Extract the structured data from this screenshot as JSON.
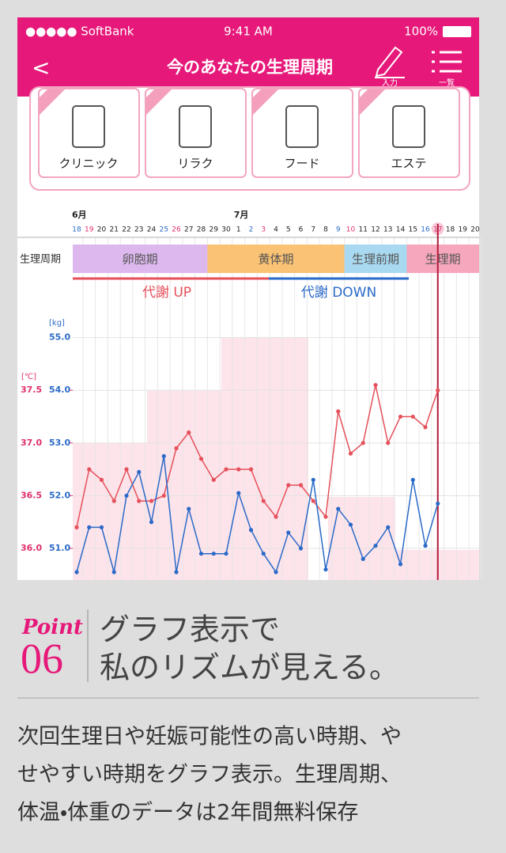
{
  "status_bar": {
    "carrier": "●●●●● SoftBank",
    "time": "9:41 AM",
    "battery": "100%"
  },
  "nav": {
    "back": "<",
    "title": "今のあなたの生理周期",
    "input": "入力",
    "list": "一覧"
  },
  "cards": [
    "クリニック",
    "リラク",
    "フード",
    "エステ"
  ],
  "chart_data": {
    "type": "line",
    "months": [
      "6月",
      "7月"
    ],
    "categories": [
      "18",
      "19",
      "20",
      "21",
      "22",
      "23",
      "24",
      "25",
      "26",
      "27",
      "28",
      "29",
      "30",
      "1",
      "2",
      "3",
      "4",
      "5",
      "6",
      "7",
      "8",
      "9",
      "10",
      "11",
      "12",
      "13",
      "14",
      "15",
      "16",
      "17",
      "18",
      "19",
      "20"
    ],
    "category_colors": [
      "#2a6ac8",
      "#e0306a",
      "#222",
      "#222",
      "#222",
      "#222",
      "#222",
      "#2a6ac8",
      "#e0306a",
      "#222",
      "#222",
      "#222",
      "#222",
      "#222",
      "#2a6ac8",
      "#e0306a",
      "#222",
      "#222",
      "#222",
      "#222",
      "#222",
      "#2a6ac8",
      "#e0306a",
      "#222",
      "#222",
      "#222",
      "#222",
      "#222",
      "#2a6ac8",
      "#e0306a",
      "#222",
      "#222",
      "#222"
    ],
    "phase_label": "生理周期",
    "phases": [
      {
        "name": "卵胞期",
        "color": "#dcb8ee"
      },
      {
        "name": "黄体期",
        "color": "#f9c274"
      },
      {
        "name": "生理前期",
        "color": "#a9d9f1"
      },
      {
        "name": "生理期",
        "color": "#f6a7bd"
      }
    ],
    "metabolism": [
      {
        "name": "代謝 UP",
        "color": "#e5505a"
      },
      {
        "name": "代謝 DOWN",
        "color": "#2a6ac8"
      }
    ],
    "y_label": "[kg]",
    "y2_label": "[℃]",
    "ylim": [
      50.4,
      55.4
    ],
    "yticks": [
      {
        "value": 51,
        "label": "51.0"
      },
      {
        "value": 52,
        "label": "52.0"
      },
      {
        "value": 53,
        "label": "53.0"
      },
      {
        "value": 54,
        "label": "54.0"
      },
      {
        "value": 55,
        "label": "55.0"
      }
    ],
    "y2lim": [
      35.7,
      38.2
    ],
    "y2ticks": [
      {
        "value": 36,
        "label": "36.0"
      },
      {
        "value": 36.5,
        "label": "36.5"
      },
      {
        "value": 37,
        "label": "37.0"
      },
      {
        "value": 37.5,
        "label": "37.5"
      }
    ],
    "grid": true,
    "series": [
      {
        "color": "#e5505a",
        "axis": "y2",
        "values": [
          36.2,
          36.75,
          36.65,
          36.45,
          36.75,
          36.45,
          36.45,
          36.5,
          36.95,
          37.1,
          36.85,
          36.65,
          36.75,
          36.75,
          36.75,
          36.45,
          36.3,
          36.6,
          36.6,
          36.45,
          36.3,
          37.3,
          36.9,
          37.0,
          37.55,
          37.0,
          37.25,
          37.25,
          37.15,
          37.5,
          null,
          null,
          null
        ]
      },
      {
        "color": "#2a6ac8",
        "values": [
          50.55,
          51.4,
          51.4,
          50.55,
          52.0,
          52.45,
          51.5,
          52.75,
          50.55,
          51.75,
          50.9,
          50.9,
          50.9,
          52.05,
          51.35,
          50.9,
          50.55,
          51.3,
          51.0,
          52.3,
          50.6,
          51.75,
          51.45,
          50.8,
          51.05,
          51.4,
          50.7,
          52.3,
          51.05,
          51.85,
          null,
          null,
          null
        ]
      }
    ]
  },
  "point": {
    "label": "Point",
    "number": "06",
    "heading": [
      "グラフ表示で",
      "私のリズムが見える。"
    ]
  },
  "description": [
    "次回生理日や妊娠可能性の高い時期、や",
    "せやすい時期をグラフ表示。生理周期、",
    "体温・体重のデータは2年間無料保存"
  ]
}
